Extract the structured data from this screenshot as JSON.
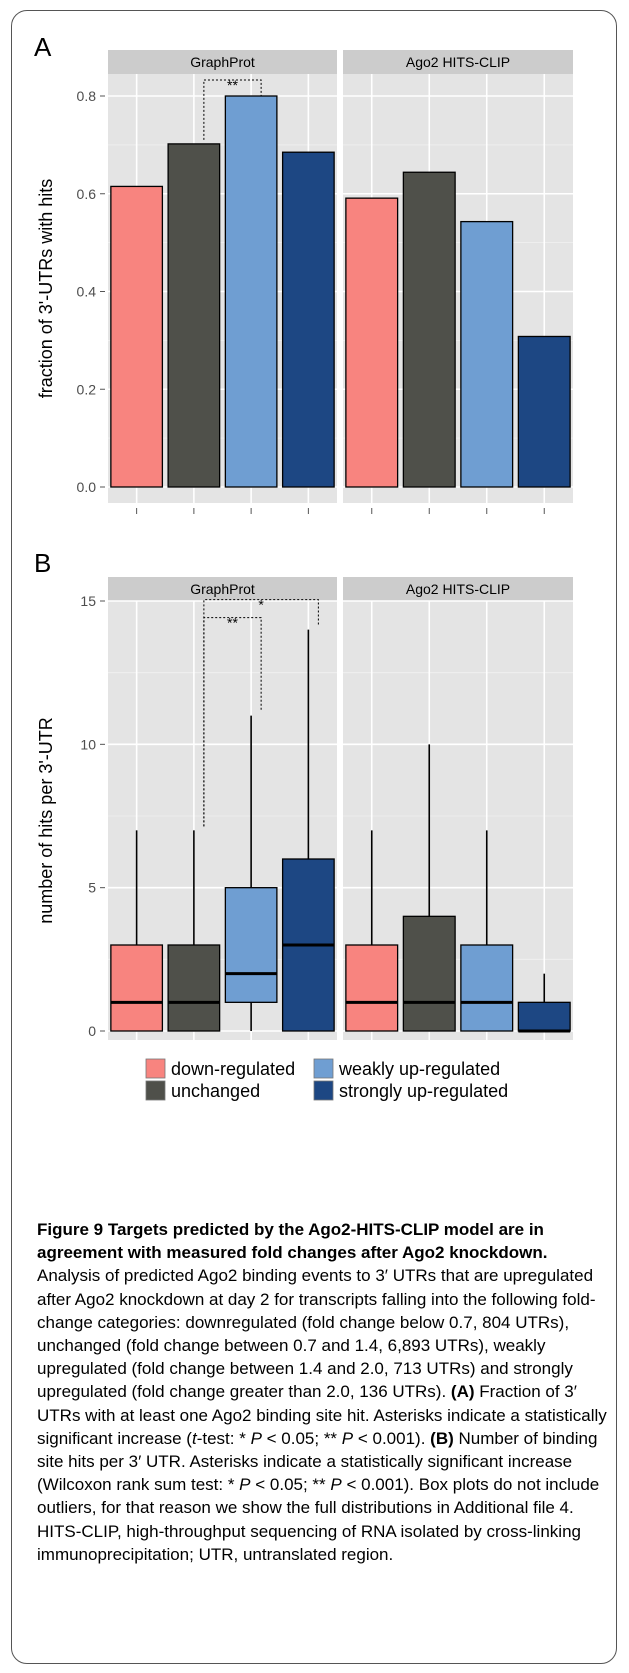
{
  "colors": {
    "down": "#F8847F",
    "unchanged": "#4F504A",
    "weak": "#6F9ED2",
    "strong": "#1D4783",
    "panel_bg": "#E4E4E4",
    "strip_bg": "#CCCCCC",
    "grid": "#FFFFFF"
  },
  "legend": {
    "items": [
      {
        "key": "down",
        "label": "down-regulated"
      },
      {
        "key": "weak",
        "label": "weakly up-regulated"
      },
      {
        "key": "unchanged",
        "label": "unchanged"
      },
      {
        "key": "strong",
        "label": "strongly up-regulated"
      }
    ]
  },
  "chart_data": [
    {
      "panel_letter": "A",
      "type": "bar",
      "ylabel": "fraction of 3'-UTRs with hits",
      "ylim": [
        0,
        0.8
      ],
      "yticks": [
        "0.0",
        "0.2",
        "0.4",
        "0.6",
        "0.8"
      ],
      "categories": [
        "down-regulated",
        "unchanged",
        "weakly up-regulated",
        "strongly up-regulated"
      ],
      "facets": [
        {
          "name": "GraphProt",
          "values": [
            0.615,
            0.702,
            0.8,
            0.685
          ]
        },
        {
          "name": "Ago2 HITS-CLIP",
          "values": [
            0.591,
            0.644,
            0.543,
            0.308
          ]
        }
      ],
      "significance": [
        {
          "facet": "GraphProt",
          "from": "unchanged",
          "to": "weakly up-regulated",
          "label": "**"
        }
      ]
    },
    {
      "panel_letter": "B",
      "type": "box",
      "ylabel": "number of hits per 3'-UTR",
      "ylim": [
        0,
        15
      ],
      "yticks": [
        "0",
        "5",
        "10",
        "15"
      ],
      "categories": [
        "down-regulated",
        "unchanged",
        "weakly up-regulated",
        "strongly up-regulated"
      ],
      "facets": [
        {
          "name": "GraphProt",
          "boxes": [
            {
              "min": 0,
              "q1": 0,
              "median": 1,
              "q3": 3,
              "max": 7
            },
            {
              "min": 0,
              "q1": 0,
              "median": 1,
              "q3": 3,
              "max": 7
            },
            {
              "min": 0,
              "q1": 1,
              "median": 2,
              "q3": 5,
              "max": 11
            },
            {
              "min": 0,
              "q1": 0,
              "median": 3,
              "q3": 6,
              "max": 14
            }
          ]
        },
        {
          "name": "Ago2 HITS-CLIP",
          "boxes": [
            {
              "min": 0,
              "q1": 0,
              "median": 1,
              "q3": 3,
              "max": 7
            },
            {
              "min": 0,
              "q1": 0,
              "median": 1,
              "q3": 4,
              "max": 10
            },
            {
              "min": 0,
              "q1": 0,
              "median": 1,
              "q3": 3,
              "max": 7
            },
            {
              "min": 0,
              "q1": 0,
              "median": 0,
              "q3": 1,
              "max": 2
            }
          ]
        }
      ],
      "significance": [
        {
          "facet": "GraphProt",
          "from": "unchanged",
          "to": "weakly up-regulated",
          "label": "**"
        },
        {
          "facet": "GraphProt",
          "from": "unchanged",
          "to": "strongly up-regulated",
          "label": "*"
        }
      ]
    }
  ],
  "caption": {
    "title": "Figure 9 Targets predicted by the Ago2-HITS-CLIP model are in agreement with measured fold changes after Ago2 knockdown.",
    "p1": " Analysis of predicted Ago2 binding events to 3′ UTRs that are upregulated after Ago2 knockdown at day 2 for transcripts falling into the following fold-change categories: downregulated (fold change below 0.7, 804 UTRs), unchanged (fold change between 0.7 and 1.4, 6,893 UTRs), weakly upregulated (fold change between 1.4 and 2.0, 713 UTRs) and strongly upregulated (fold change greater than 2.0, 136 UTRs). ",
    "label_a": "(A)",
    "p2": " Fraction of 3′ UTRs with at least one Ago2 binding site hit. Asterisks indicate a statistically significant increase (",
    "t": "t",
    "p3": "-test: * ",
    "P": "P",
    "p4": " < 0.05; ** ",
    "p5": " < 0.001). ",
    "label_b": "(B)",
    "p6": " Number of binding site hits per 3′ UTR. Asterisks indicate a statistically significant increase (Wilcoxon rank sum test: * ",
    "p7": " < 0.05; ** ",
    "p8": " < 0.001). Box plots do not include outliers, for that reason we show the full distributions in Additional file 4. HITS-CLIP, high-throughput sequencing of RNA isolated by cross-linking immunoprecipitation; UTR, untranslated region."
  }
}
